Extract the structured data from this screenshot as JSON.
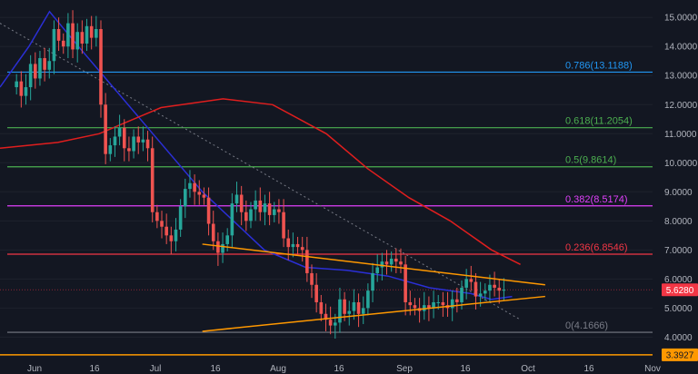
{
  "chart_data": {
    "type": "candlestick",
    "y_axis": {
      "ticks": [
        "15.0000",
        "14.0000",
        "13.0000",
        "12.0000",
        "11.0000",
        "10.0000",
        "9.0000",
        "8.0000",
        "7.0000",
        "6.0000",
        "5.0000",
        "4.0000"
      ],
      "range": [
        3.2,
        15.6
      ]
    },
    "x_axis": {
      "ticks": [
        "Jun",
        "16",
        "Jul",
        "16",
        "Aug",
        "16",
        "Sep",
        "16",
        "Oct",
        "16",
        "Nov"
      ],
      "range_days": [
        -4,
        154
      ]
    },
    "price_label": {
      "text": "5.6280",
      "value": 5.628,
      "color": "#f23645"
    },
    "support_label": {
      "text": "3.3927",
      "value": 3.3927,
      "color": "#ff9800"
    },
    "fib_levels": [
      {
        "label": "0.786(13.1188)",
        "value": 13.1188,
        "color": "#2196f3"
      },
      {
        "label": "0.618(11.2054)",
        "value": 11.2054,
        "color": "#4caf50"
      },
      {
        "label": "0.5(9.8614)",
        "value": 9.8614,
        "color": "#4caf50"
      },
      {
        "label": "0.382(8.5174)",
        "value": 8.5174,
        "color": "#e040fb"
      },
      {
        "label": "0.236(6.8546)",
        "value": 6.8546,
        "color": "#f23645"
      },
      {
        "label": "0(4.1666)",
        "value": 4.1666,
        "color": "#787b86"
      }
    ],
    "colors": {
      "background": "#131722",
      "up": "#26a69a",
      "down": "#ef5350",
      "ma_fast": "#2b2fd6",
      "ma_slow": "#e01e1e",
      "triangle": "#ff9800",
      "grid": "#1e222d"
    },
    "closes": [
      12.8,
      12.3,
      12.6,
      13.4,
      12.9,
      13.6,
      13.2,
      13.5,
      14.6,
      14.2,
      14.0,
      14.8,
      13.9,
      14.5,
      14.1,
      14.7,
      14.3,
      14.6,
      12.0,
      10.3,
      10.6,
      10.9,
      11.2,
      10.5,
      10.4,
      10.9,
      10.7,
      10.8,
      10.5,
      8.3,
      8.0,
      7.8,
      7.5,
      7.3,
      7.7,
      8.5,
      9.1,
      9.3,
      9.0,
      8.9,
      8.8,
      7.9,
      7.3,
      6.9,
      7.2,
      7.5,
      8.6,
      8.9,
      8.3,
      8.0,
      8.4,
      8.7,
      8.3,
      8.6,
      8.2,
      8.4,
      8.3,
      7.4,
      7.1,
      7.2,
      7.1,
      7.0,
      6.2,
      5.8,
      5.2,
      4.8,
      4.6,
      4.4,
      4.5,
      5.3,
      4.8,
      4.9,
      5.2,
      4.8,
      5.0,
      5.6,
      6.2,
      6.4,
      6.6,
      6.5,
      6.7,
      6.6,
      6.5,
      5.2,
      5.1,
      5.0,
      4.9,
      5.1,
      5.0,
      5.2,
      5.2,
      5.1,
      5.0,
      5.3,
      5.2,
      5.7,
      6.0,
      5.9,
      5.4,
      5.5,
      5.6,
      5.8,
      5.7,
      5.6,
      5.63
    ],
    "moving_averages": [
      {
        "name": "fast",
        "points": [
          [
            -4,
            12.6
          ],
          [
            3,
            14.0
          ],
          [
            8,
            15.2
          ],
          [
            15,
            14.0
          ],
          [
            30,
            11.5
          ],
          [
            45,
            9.0
          ],
          [
            60,
            7.0
          ],
          [
            70,
            6.4
          ],
          [
            80,
            6.3
          ],
          [
            90,
            6.1
          ],
          [
            100,
            5.7
          ],
          [
            110,
            5.5
          ],
          [
            115,
            5.3
          ],
          [
            120,
            5.4
          ]
        ]
      },
      {
        "name": "slow",
        "points": [
          [
            -4,
            10.5
          ],
          [
            10,
            10.7
          ],
          [
            20,
            11.0
          ],
          [
            35,
            11.9
          ],
          [
            50,
            12.2
          ],
          [
            62,
            12.0
          ],
          [
            75,
            11.0
          ],
          [
            85,
            9.8
          ],
          [
            95,
            8.8
          ],
          [
            105,
            8.0
          ],
          [
            115,
            7.0
          ],
          [
            122,
            6.5
          ]
        ]
      }
    ],
    "triangle": {
      "upper": [
        [
          45,
          7.2
        ],
        [
          128,
          5.8
        ]
      ],
      "lower": [
        [
          45,
          4.2
        ],
        [
          128,
          5.4
        ]
      ]
    },
    "diagonal": [
      [
        -4,
        14.8
      ],
      [
        122,
        4.6
      ]
    ]
  }
}
